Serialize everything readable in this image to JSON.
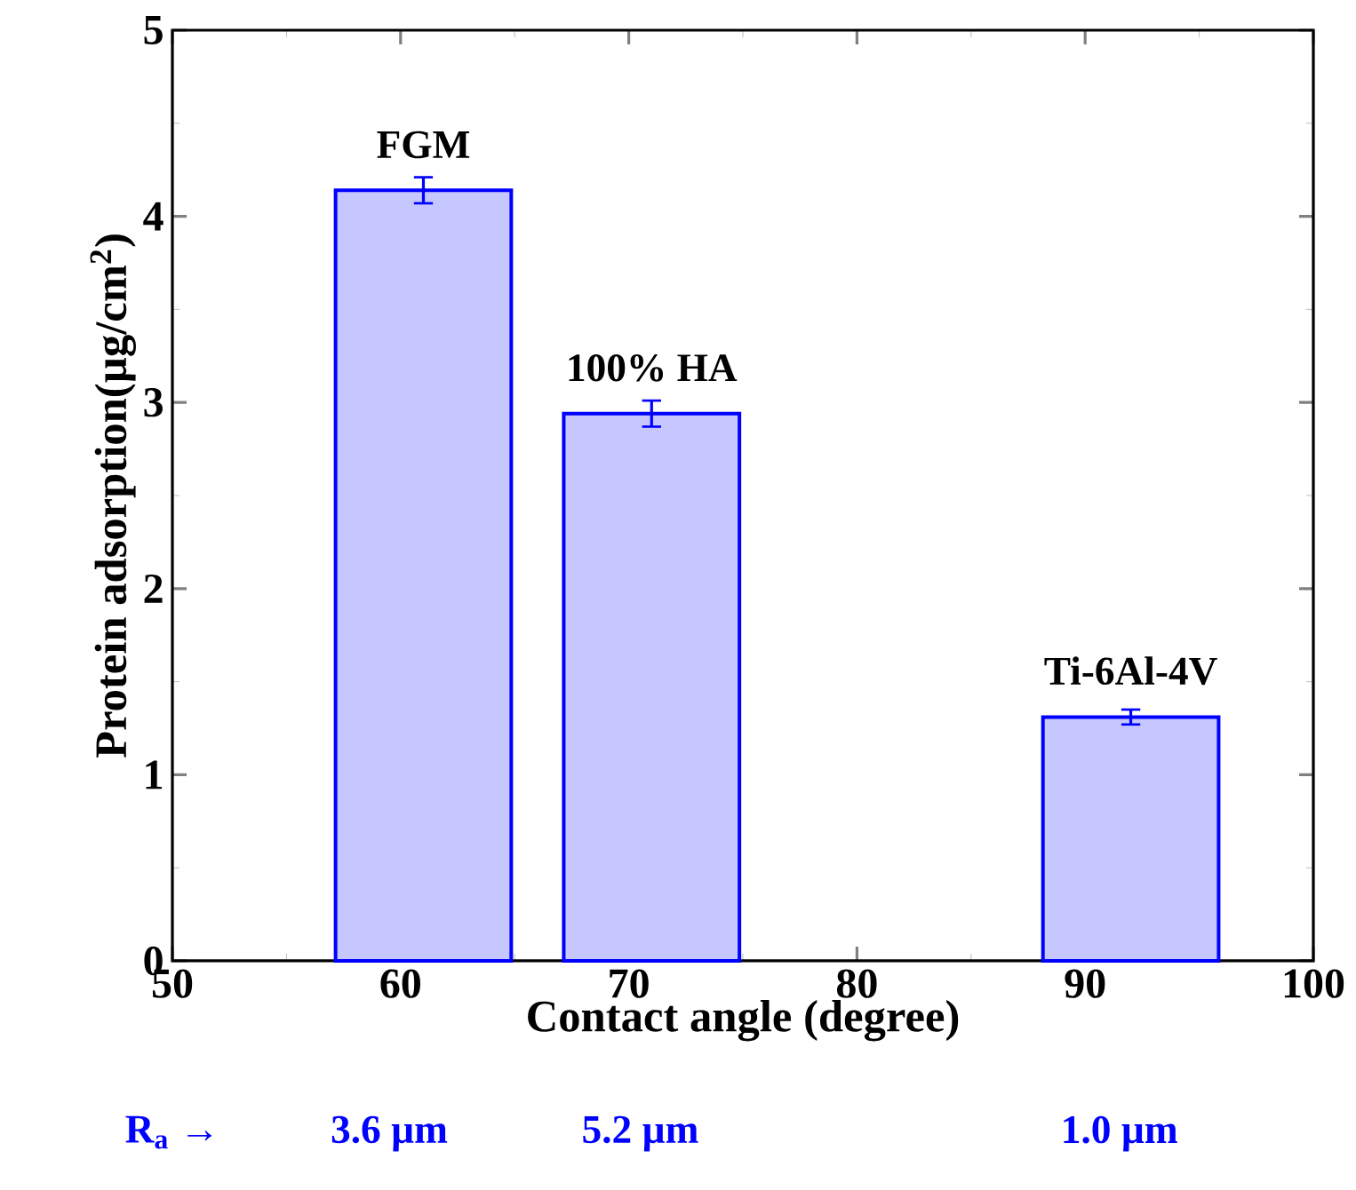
{
  "chart_data": {
    "type": "bar",
    "xlabel": "Contact angle (degree)",
    "ylabel": "Protein adsorption(µg/cm$^{2}$)",
    "x": [
      61,
      71,
      92
    ],
    "values": [
      4.14,
      2.94,
      1.31
    ],
    "errors": [
      0.07,
      0.07,
      0.04
    ],
    "color": "#0000ff",
    "xlim": [
      50,
      100
    ],
    "xticks": [
      50,
      60,
      70,
      80,
      90,
      100
    ],
    "ylim": [
      0,
      5
    ],
    "yticks": [
      0,
      1,
      2,
      3,
      4,
      5
    ],
    "annotations": [
      {
        "text": "FGM",
        "x": 61,
        "y": 4.14
      },
      {
        "text": "100% HA",
        "x": 71,
        "y": 2.94
      },
      {
        "text": "Ti-6Al-4V",
        "x": 92,
        "y": 1.31
      },
      "R$_{a}$ →",
      "3.6 µm",
      "5.2 µm",
      "1.0 µm"
    ]
  }
}
